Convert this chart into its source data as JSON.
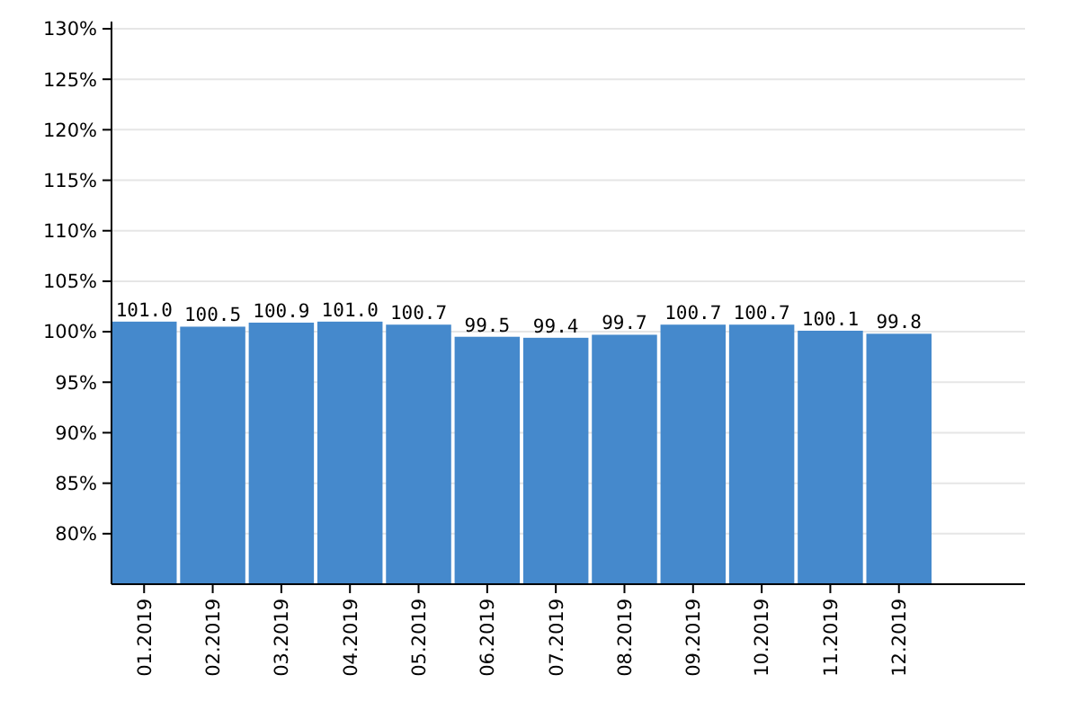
{
  "chart_data": {
    "type": "bar",
    "categories": [
      "01.2019",
      "02.2019",
      "03.2019",
      "04.2019",
      "05.2019",
      "06.2019",
      "07.2019",
      "08.2019",
      "09.2019",
      "10.2019",
      "11.2019",
      "12.2019"
    ],
    "values": [
      101.0,
      100.5,
      100.9,
      101.0,
      100.7,
      99.5,
      99.4,
      99.7,
      100.7,
      100.7,
      100.1,
      99.8
    ],
    "value_labels": [
      "101.0",
      "100.5",
      "100.9",
      "101.0",
      "100.7",
      "99.5",
      "99.4",
      "99.7",
      "100.7",
      "100.7",
      "100.1",
      "99.8"
    ],
    "color": "#4589cc",
    "ylim": [
      75,
      130
    ],
    "yticks": [
      {
        "value": 80,
        "label": "80%"
      },
      {
        "value": 85,
        "label": "85%"
      },
      {
        "value": 90,
        "label": "90%"
      },
      {
        "value": 95,
        "label": "95%"
      },
      {
        "value": 100,
        "label": "100%"
      },
      {
        "value": 105,
        "label": "105%"
      },
      {
        "value": 110,
        "label": "110%"
      },
      {
        "value": 115,
        "label": "115%"
      },
      {
        "value": 120,
        "label": "120%"
      },
      {
        "value": 125,
        "label": "125%"
      },
      {
        "value": 130,
        "label": "130%"
      }
    ],
    "grid": "y"
  }
}
